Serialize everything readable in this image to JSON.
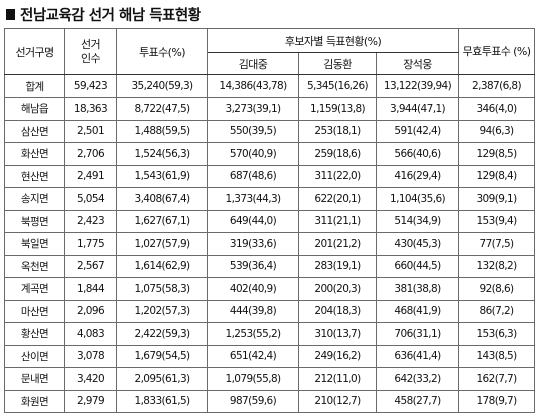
{
  "title": "전남교육감 선거 해남 득표현황",
  "table": {
    "headers": {
      "region": "선거구명",
      "voters": "선거 인수",
      "votes": "투표수(%)",
      "candidates_group": "후보자별 득표현황(%)",
      "candidates": [
        "김대중",
        "김동환",
        "장석웅"
      ],
      "invalid": "무효투표수 (%)"
    },
    "rows": [
      {
        "region": "합계",
        "voters": "59,423",
        "votes": "35,240(59,3)",
        "c1": "14,386(43,78)",
        "c2": "5,345(16,26)",
        "c3": "13,122(39,94)",
        "invalid": "2,387(6,8)"
      },
      {
        "region": "해남읍",
        "voters": "18,363",
        "votes": "8,722(47,5)",
        "c1": "3,273(39,1)",
        "c2": "1,159(13,8)",
        "c3": "3,944(47,1)",
        "invalid": "346(4,0)"
      },
      {
        "region": "삼산면",
        "voters": "2,501",
        "votes": "1,488(59,5)",
        "c1": "550(39,5)",
        "c2": "253(18,1)",
        "c3": "591(42,4)",
        "invalid": "94(6,3)"
      },
      {
        "region": "화산면",
        "voters": "2,706",
        "votes": "1,524(56,3)",
        "c1": "570(40,9)",
        "c2": "259(18,6)",
        "c3": "566(40,6)",
        "invalid": "129(8,5)"
      },
      {
        "region": "현산면",
        "voters": "2,491",
        "votes": "1,543(61,9)",
        "c1": "687(48,6)",
        "c2": "311(22,0)",
        "c3": "416(29,4)",
        "invalid": "129(8,4)"
      },
      {
        "region": "송지면",
        "voters": "5,054",
        "votes": "3,408(67,4)",
        "c1": "1,373(44,3)",
        "c2": "622(20,1)",
        "c3": "1,104(35,6)",
        "invalid": "309(9,1)"
      },
      {
        "region": "북평면",
        "voters": "2,423",
        "votes": "1,627(67,1)",
        "c1": "649(44,0)",
        "c2": "311(21,1)",
        "c3": "514(34,9)",
        "invalid": "153(9,4)"
      },
      {
        "region": "북일면",
        "voters": "1,775",
        "votes": "1,027(57,9)",
        "c1": "319(33,6)",
        "c2": "201(21,2)",
        "c3": "430(45,3)",
        "invalid": "77(7,5)"
      },
      {
        "region": "옥천면",
        "voters": "2,567",
        "votes": "1,614(62,9)",
        "c1": "539(36,4)",
        "c2": "283(19,1)",
        "c3": "660(44,5)",
        "invalid": "132(8,2)"
      },
      {
        "region": "계곡면",
        "voters": "1,844",
        "votes": "1,075(58,3)",
        "c1": "402(40,9)",
        "c2": "200(20,3)",
        "c3": "381(38,8)",
        "invalid": "92(8,6)"
      },
      {
        "region": "마산면",
        "voters": "2,096",
        "votes": "1,202(57,3)",
        "c1": "444(39,8)",
        "c2": "204(18,3)",
        "c3": "468(41,9)",
        "invalid": "86(7,2)"
      },
      {
        "region": "황산면",
        "voters": "4,083",
        "votes": "2,422(59,3)",
        "c1": "1,253(55,2)",
        "c2": "310(13,7)",
        "c3": "706(31,1)",
        "invalid": "153(6,3)"
      },
      {
        "region": "산이면",
        "voters": "3,078",
        "votes": "1,679(54,5)",
        "c1": "651(42,4)",
        "c2": "249(16,2)",
        "c3": "636(41,4)",
        "invalid": "143(8,5)"
      },
      {
        "region": "문내면",
        "voters": "3,420",
        "votes": "2,095(61,3)",
        "c1": "1,079(55,8)",
        "c2": "212(11,0)",
        "c3": "642(33,2)",
        "invalid": "162(7,7)"
      },
      {
        "region": "화원면",
        "voters": "2,979",
        "votes": "1,833(61,5)",
        "c1": "987(59,6)",
        "c2": "210(12,7)",
        "c3": "458(27,7)",
        "invalid": "178(9,7)"
      }
    ]
  }
}
